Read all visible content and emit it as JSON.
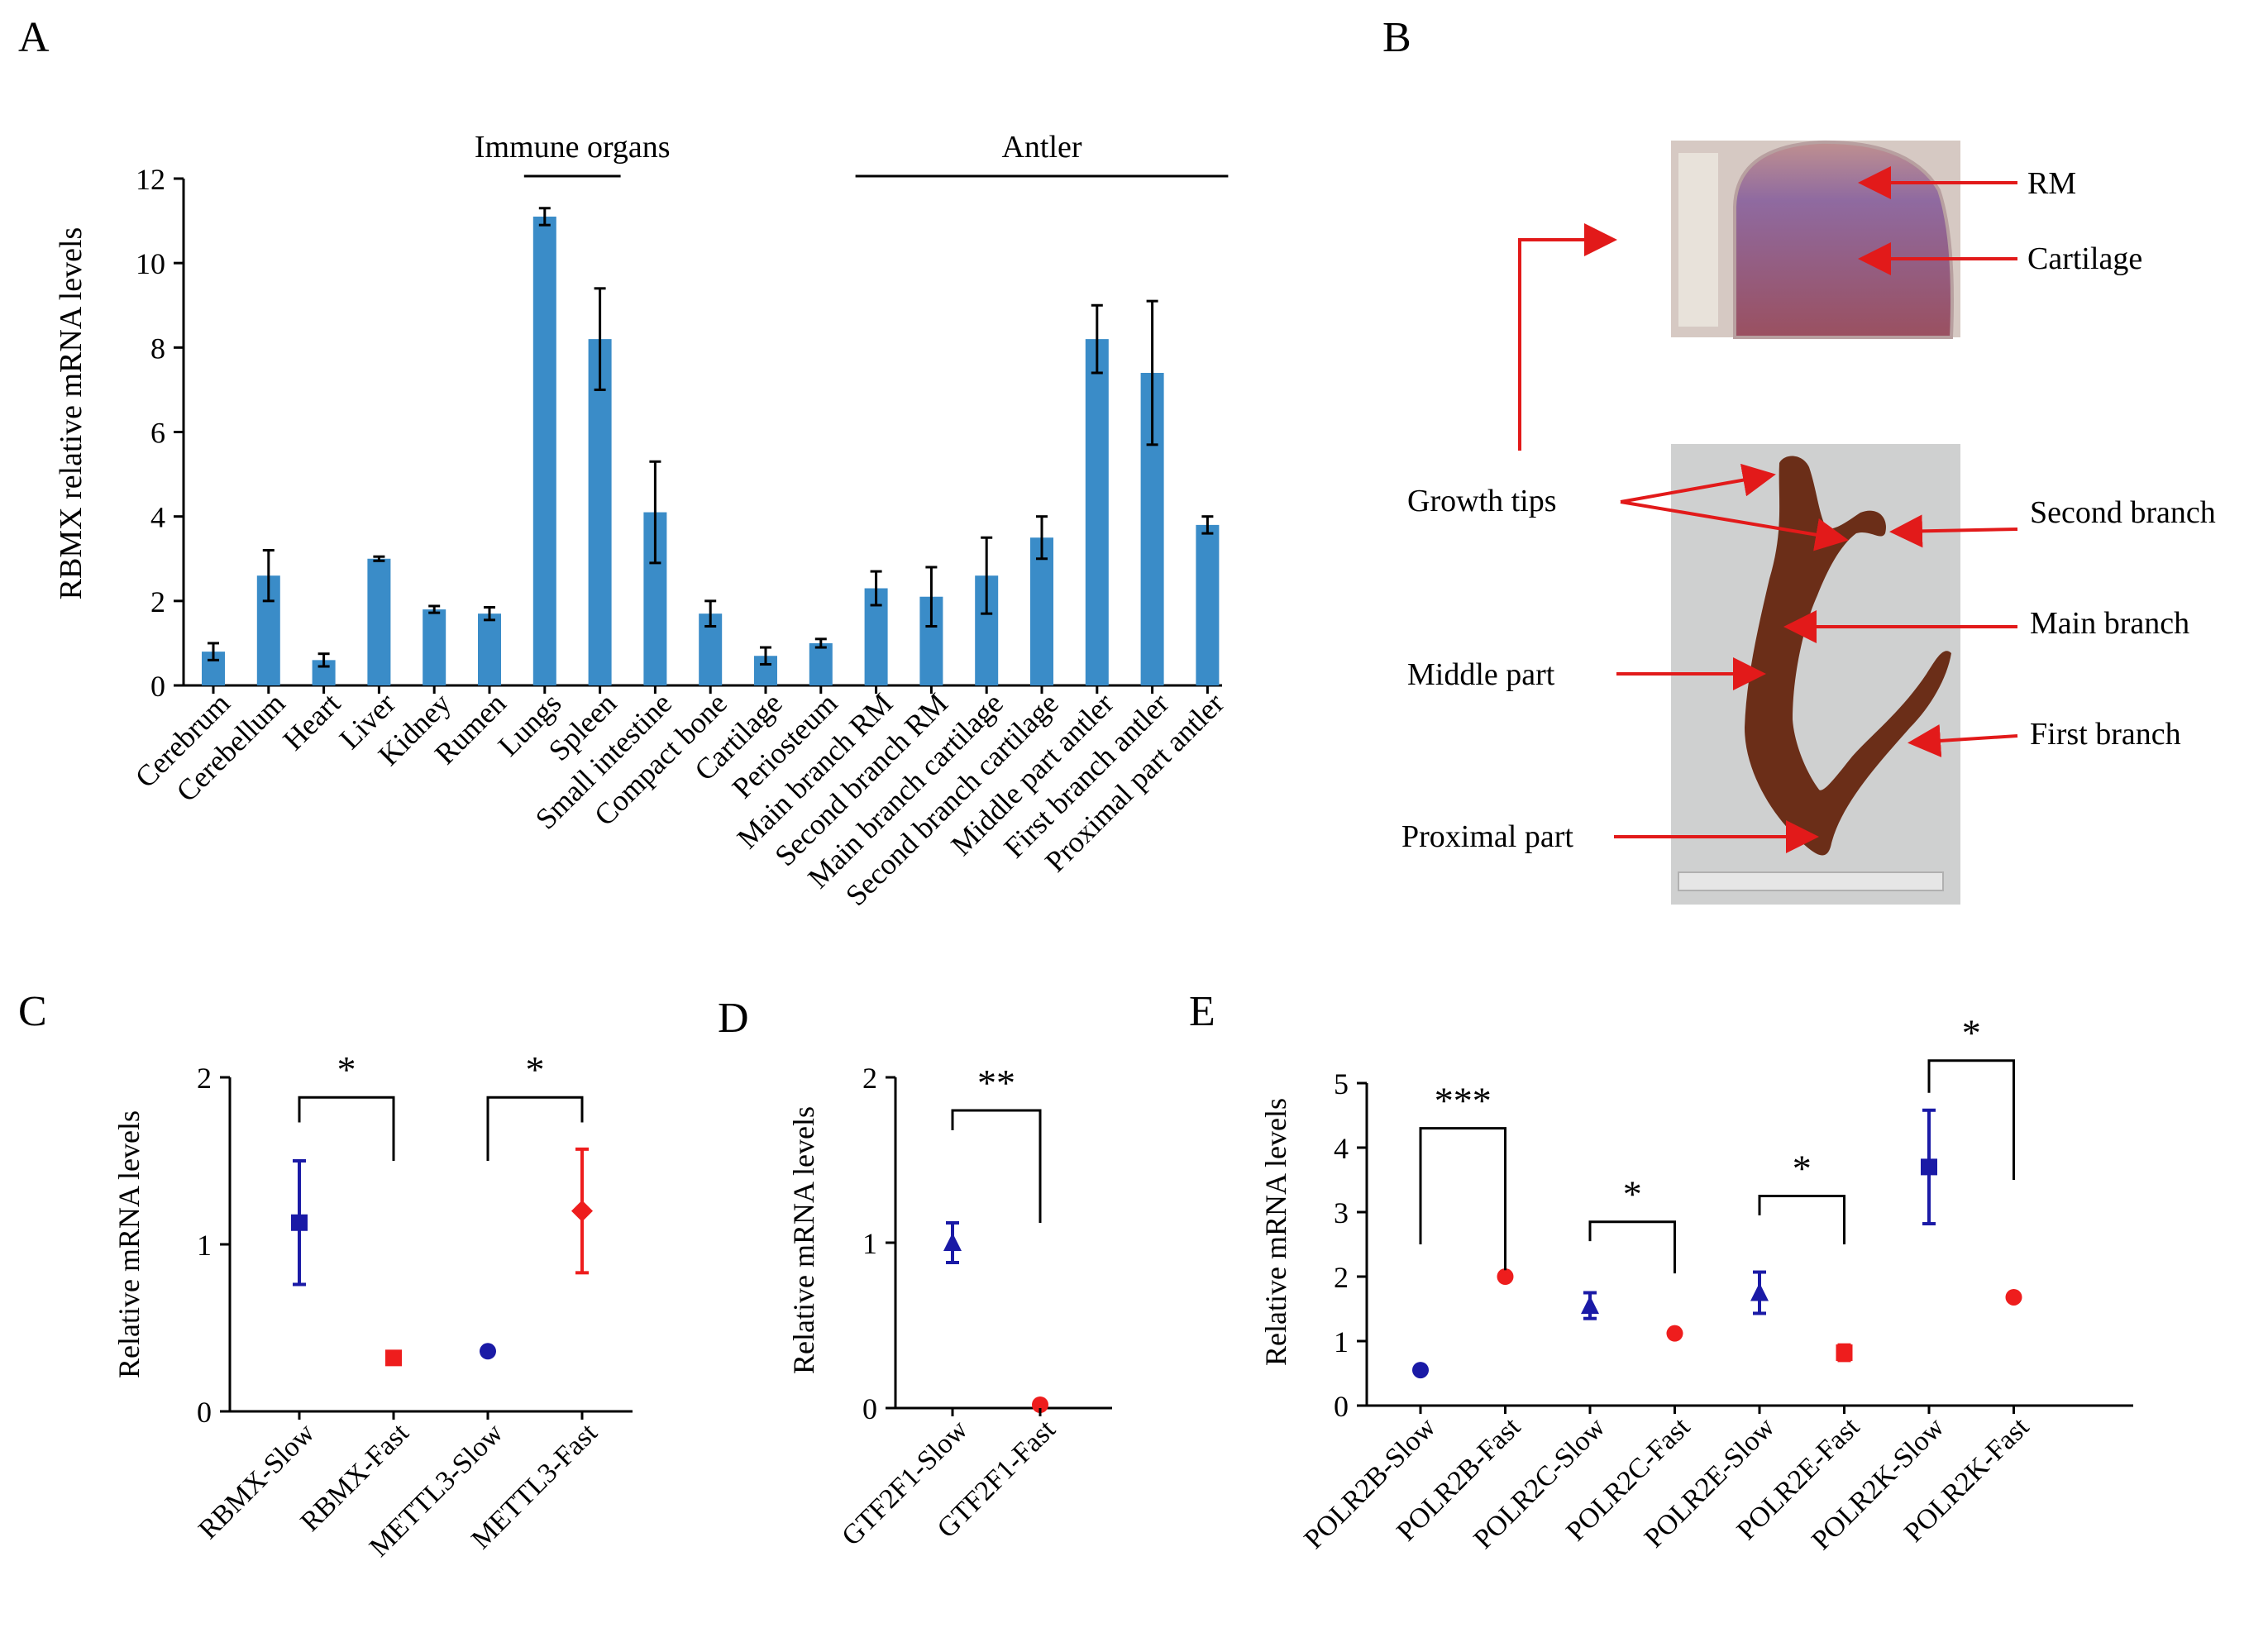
{
  "panels": {
    "A": "A",
    "B": "B",
    "C": "C",
    "D": "D",
    "E": "E"
  },
  "colors": {
    "bar": "#3a8cc8",
    "slow": "#1a1aa6",
    "fast": "#ee1d1d",
    "arrow": "#e21a1a",
    "axis": "#000000"
  },
  "chart_data": [
    {
      "id": "A",
      "type": "bar",
      "ylabel": "RBMX relative mRNA levels",
      "ylim": [
        0,
        12
      ],
      "yticks": [
        0,
        2,
        4,
        6,
        8,
        10,
        12
      ],
      "categories": [
        "Cerebrum",
        "Cerebellum",
        "Heart",
        "Liver",
        "Kidney",
        "Rumen",
        "Lungs",
        "Spleen",
        "Small intestine",
        "Compact bone",
        "Cartilage",
        "Periosteum",
        "Main branch RM",
        "Second branch RM",
        "Main branch cartilage",
        "Second branch cartilage",
        "Middle part antler",
        "First branch antler",
        "Proximal part antler"
      ],
      "values": [
        0.8,
        2.6,
        0.6,
        3.0,
        1.8,
        1.7,
        11.1,
        8.2,
        4.1,
        1.7,
        0.7,
        1.0,
        2.3,
        2.1,
        2.6,
        3.5,
        8.2,
        7.4,
        3.8
      ],
      "errors": [
        0.2,
        0.6,
        0.15,
        0.05,
        0.08,
        0.15,
        0.2,
        1.2,
        1.2,
        0.3,
        0.2,
        0.1,
        0.4,
        0.7,
        0.9,
        0.5,
        0.8,
        1.7,
        0.2
      ],
      "groups": [
        {
          "label": "Immune organs",
          "from": 6,
          "to": 7
        },
        {
          "label": "Antler",
          "from": 12,
          "to": 18
        }
      ]
    },
    {
      "id": "C",
      "type": "scatter",
      "ylabel": "Relative mRNA levels",
      "ylim": [
        0,
        2
      ],
      "yticks": [
        0,
        1,
        2
      ],
      "categories": [
        "RBMX-Slow",
        "RBMX-Fast",
        "METTL3-Slow",
        "METTL3-Fast"
      ],
      "values": [
        1.13,
        0.32,
        0.36,
        1.2
      ],
      "errors": [
        0.37,
        0.03,
        0.02,
        0.37
      ],
      "groups": [
        "slow",
        "fast",
        "slow",
        "fast"
      ],
      "markers": [
        "square",
        "square",
        "circle",
        "diamond"
      ],
      "significance": [
        {
          "from": 0,
          "to": 1,
          "label": "*",
          "top": 1.88,
          "left_drop": 1.73,
          "right_drop": 1.5
        },
        {
          "from": 2,
          "to": 3,
          "label": "*",
          "top": 1.88,
          "left_drop": 1.5,
          "right_drop": 1.73
        }
      ]
    },
    {
      "id": "D",
      "type": "scatter",
      "ylabel": "Relative mRNA levels",
      "ylim": [
        0,
        2
      ],
      "yticks": [
        0,
        1,
        2
      ],
      "categories": [
        "GTF2F1-Slow",
        "GTF2F1-Fast"
      ],
      "values": [
        1.0,
        0.02
      ],
      "errors": [
        0.12,
        0.01
      ],
      "groups": [
        "slow",
        "fast"
      ],
      "markers": [
        "triangle",
        "circle"
      ],
      "significance": [
        {
          "from": 0,
          "to": 1,
          "label": "**",
          "top": 1.8,
          "left_drop": 1.68,
          "right_drop": 1.12
        }
      ]
    },
    {
      "id": "E",
      "type": "scatter",
      "ylabel": "Relative mRNA levels",
      "ylim": [
        0,
        5
      ],
      "yticks": [
        0,
        1,
        2,
        3,
        4,
        5
      ],
      "categories": [
        "POLR2B-Slow",
        "POLR2B-Fast",
        "POLR2C-Slow",
        "POLR2C-Fast",
        "POLR2E-Slow",
        "POLR2E-Fast",
        "POLR2K-Slow",
        "POLR2K-Fast"
      ],
      "values": [
        0.55,
        2.0,
        1.55,
        1.12,
        1.75,
        0.82,
        3.7,
        1.68
      ],
      "errors": [
        0.05,
        0.03,
        0.2,
        0.05,
        0.32,
        0.12,
        0.88,
        0.04
      ],
      "groups": [
        "slow",
        "fast",
        "slow",
        "fast",
        "slow",
        "fast",
        "slow",
        "fast"
      ],
      "markers": [
        "circle",
        "circle",
        "triangle",
        "circle",
        "triangle",
        "square",
        "square",
        "circle"
      ],
      "significance": [
        {
          "from": 0,
          "to": 1,
          "label": "***",
          "top": 4.3,
          "left_drop": 2.5,
          "right_drop": 2.1
        },
        {
          "from": 2,
          "to": 3,
          "label": "*",
          "top": 2.85,
          "left_drop": 2.55,
          "right_drop": 2.05
        },
        {
          "from": 4,
          "to": 5,
          "label": "*",
          "top": 3.25,
          "left_drop": 2.95,
          "right_drop": 2.5
        },
        {
          "from": 6,
          "to": 7,
          "label": "*",
          "top": 5.35,
          "left_drop": 4.85,
          "right_drop": 3.5
        }
      ]
    }
  ],
  "photo": {
    "top_labels": [
      "RM",
      "Cartilage"
    ],
    "bottom_labels": {
      "growth_tips": "Growth tips",
      "second_branch": "Second branch",
      "main_branch": "Main branch",
      "middle_part": "Middle part",
      "first_branch": "First branch",
      "proximal_part": "Proximal part"
    }
  }
}
